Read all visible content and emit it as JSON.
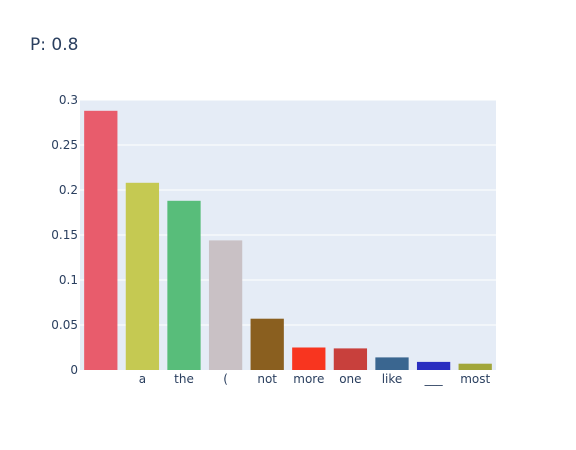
{
  "chart_data": {
    "type": "bar",
    "title": "P: 0.8",
    "xlabel": "",
    "ylabel": "",
    "categories": [
      "",
      "a",
      "the",
      "(",
      "not",
      "more",
      "one",
      "like",
      "___",
      "most"
    ],
    "values": [
      0.288,
      0.208,
      0.188,
      0.144,
      0.057,
      0.025,
      0.024,
      0.014,
      0.009,
      0.007
    ],
    "colors": [
      "#e85c6c",
      "#c5c952",
      "#58bd7a",
      "#c9c1c5",
      "#8a5f1f",
      "#f8351f",
      "#c8403c",
      "#3a6690",
      "#2a2ec0",
      "#a1a63a"
    ],
    "ylim": [
      0,
      0.3
    ],
    "yticks": [
      0,
      0.05,
      0.1,
      0.15,
      0.2,
      0.25,
      0.3
    ],
    "ytick_labels": [
      "0",
      "0.05",
      "0.1",
      "0.15",
      "0.2",
      "0.25",
      "0.3"
    ],
    "grid": true,
    "plot_background": "#e5ecf6"
  }
}
